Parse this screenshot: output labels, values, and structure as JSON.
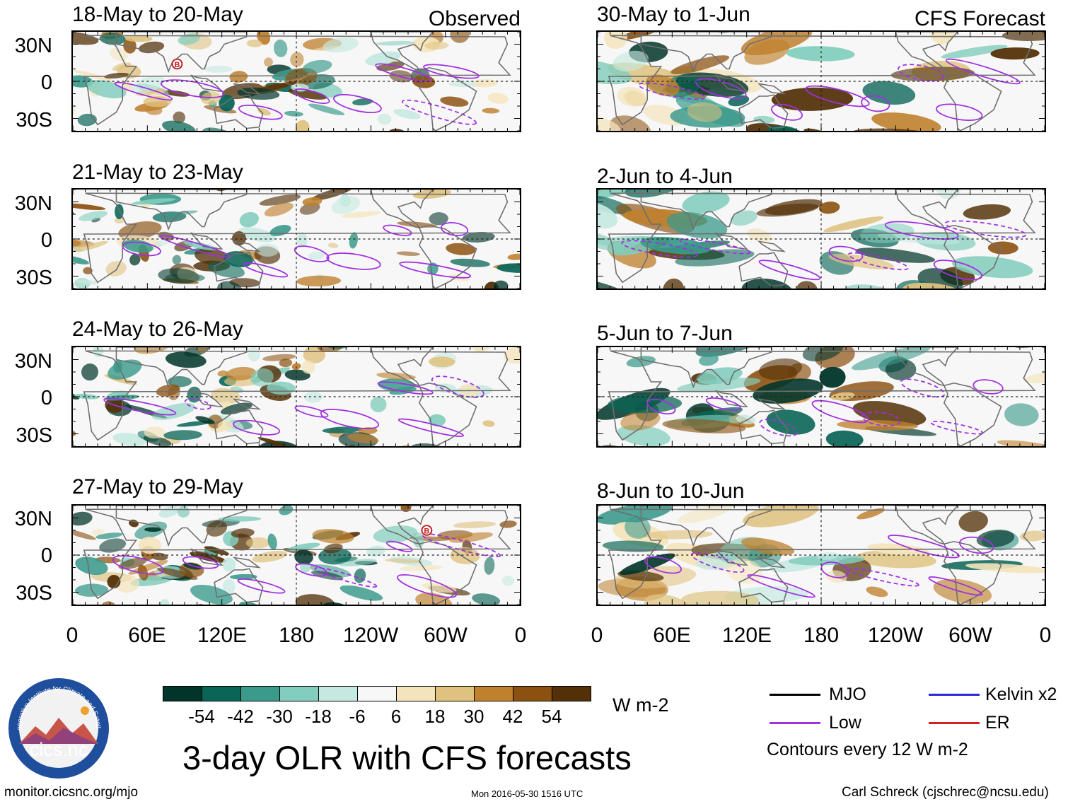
{
  "panels_left": [
    {
      "title": "18-May to 20-May"
    },
    {
      "title": "21-May to 23-May"
    },
    {
      "title": "24-May to 26-May"
    },
    {
      "title": "27-May to 29-May"
    }
  ],
  "panels_right": [
    {
      "title": "30-May to 1-Jun"
    },
    {
      "title": "2-Jun to 4-Jun"
    },
    {
      "title": "5-Jun to 7-Jun"
    },
    {
      "title": "8-Jun to 10-Jun"
    }
  ],
  "tags": {
    "observed": "Observed",
    "forecast": "CFS Forecast"
  },
  "lat_labels": [
    "30N",
    "0",
    "30S"
  ],
  "lon_labels": [
    "0",
    "60E",
    "120E",
    "180",
    "120W",
    "60W",
    "0"
  ],
  "colorbar": {
    "colors": [
      "#01352a",
      "#0a6557",
      "#3a9a8b",
      "#82cdbd",
      "#c5e9e1",
      "#f7f7f7",
      "#f4e4bb",
      "#dfc27f",
      "#bf812e",
      "#8c5110",
      "#533007"
    ],
    "labels": [
      "-54",
      "-42",
      "-30",
      "-18",
      "-6",
      "6",
      "18",
      "30",
      "42",
      "54"
    ],
    "units": "W m-2"
  },
  "legend": {
    "items": [
      {
        "label": "MJO",
        "color": "#000000"
      },
      {
        "label": "Kelvin x2",
        "color": "#2b2bd6"
      },
      {
        "label": "Low",
        "color": "#a030e0"
      },
      {
        "label": "ER",
        "color": "#d62020"
      }
    ],
    "note": "Contours every 12 W m-2"
  },
  "title": "3-day OLR with CFS forecasts",
  "logo_text": "cics.nc",
  "logo_ring_text": "Cooperative Institute for Climate and Satellites",
  "footer": {
    "url": "monitor.cicsnc.org/mjo",
    "timestamp": "Mon 2016-05-30 1516 UTC",
    "author": "Carl Schreck (cjschrec@ncsu.edu)"
  },
  "markers": [
    {
      "panel": "left-0",
      "label": "B"
    },
    {
      "panel": "left-3",
      "label": "B"
    }
  ],
  "chart_data": {
    "type": "heatmap",
    "title": "3-day OLR with CFS forecasts",
    "variable": "OLR anomaly (W m-2)",
    "x": [
      "0",
      "60E",
      "120E",
      "180",
      "120W",
      "60W",
      "0"
    ],
    "y": [
      "30N",
      "0",
      "30S"
    ],
    "xlim": [
      0,
      360
    ],
    "ylim": [
      -40,
      40
    ],
    "contour_interval": 12,
    "color_levels": [
      -54,
      -42,
      -30,
      -18,
      -6,
      6,
      18,
      30,
      42,
      54
    ]
  }
}
